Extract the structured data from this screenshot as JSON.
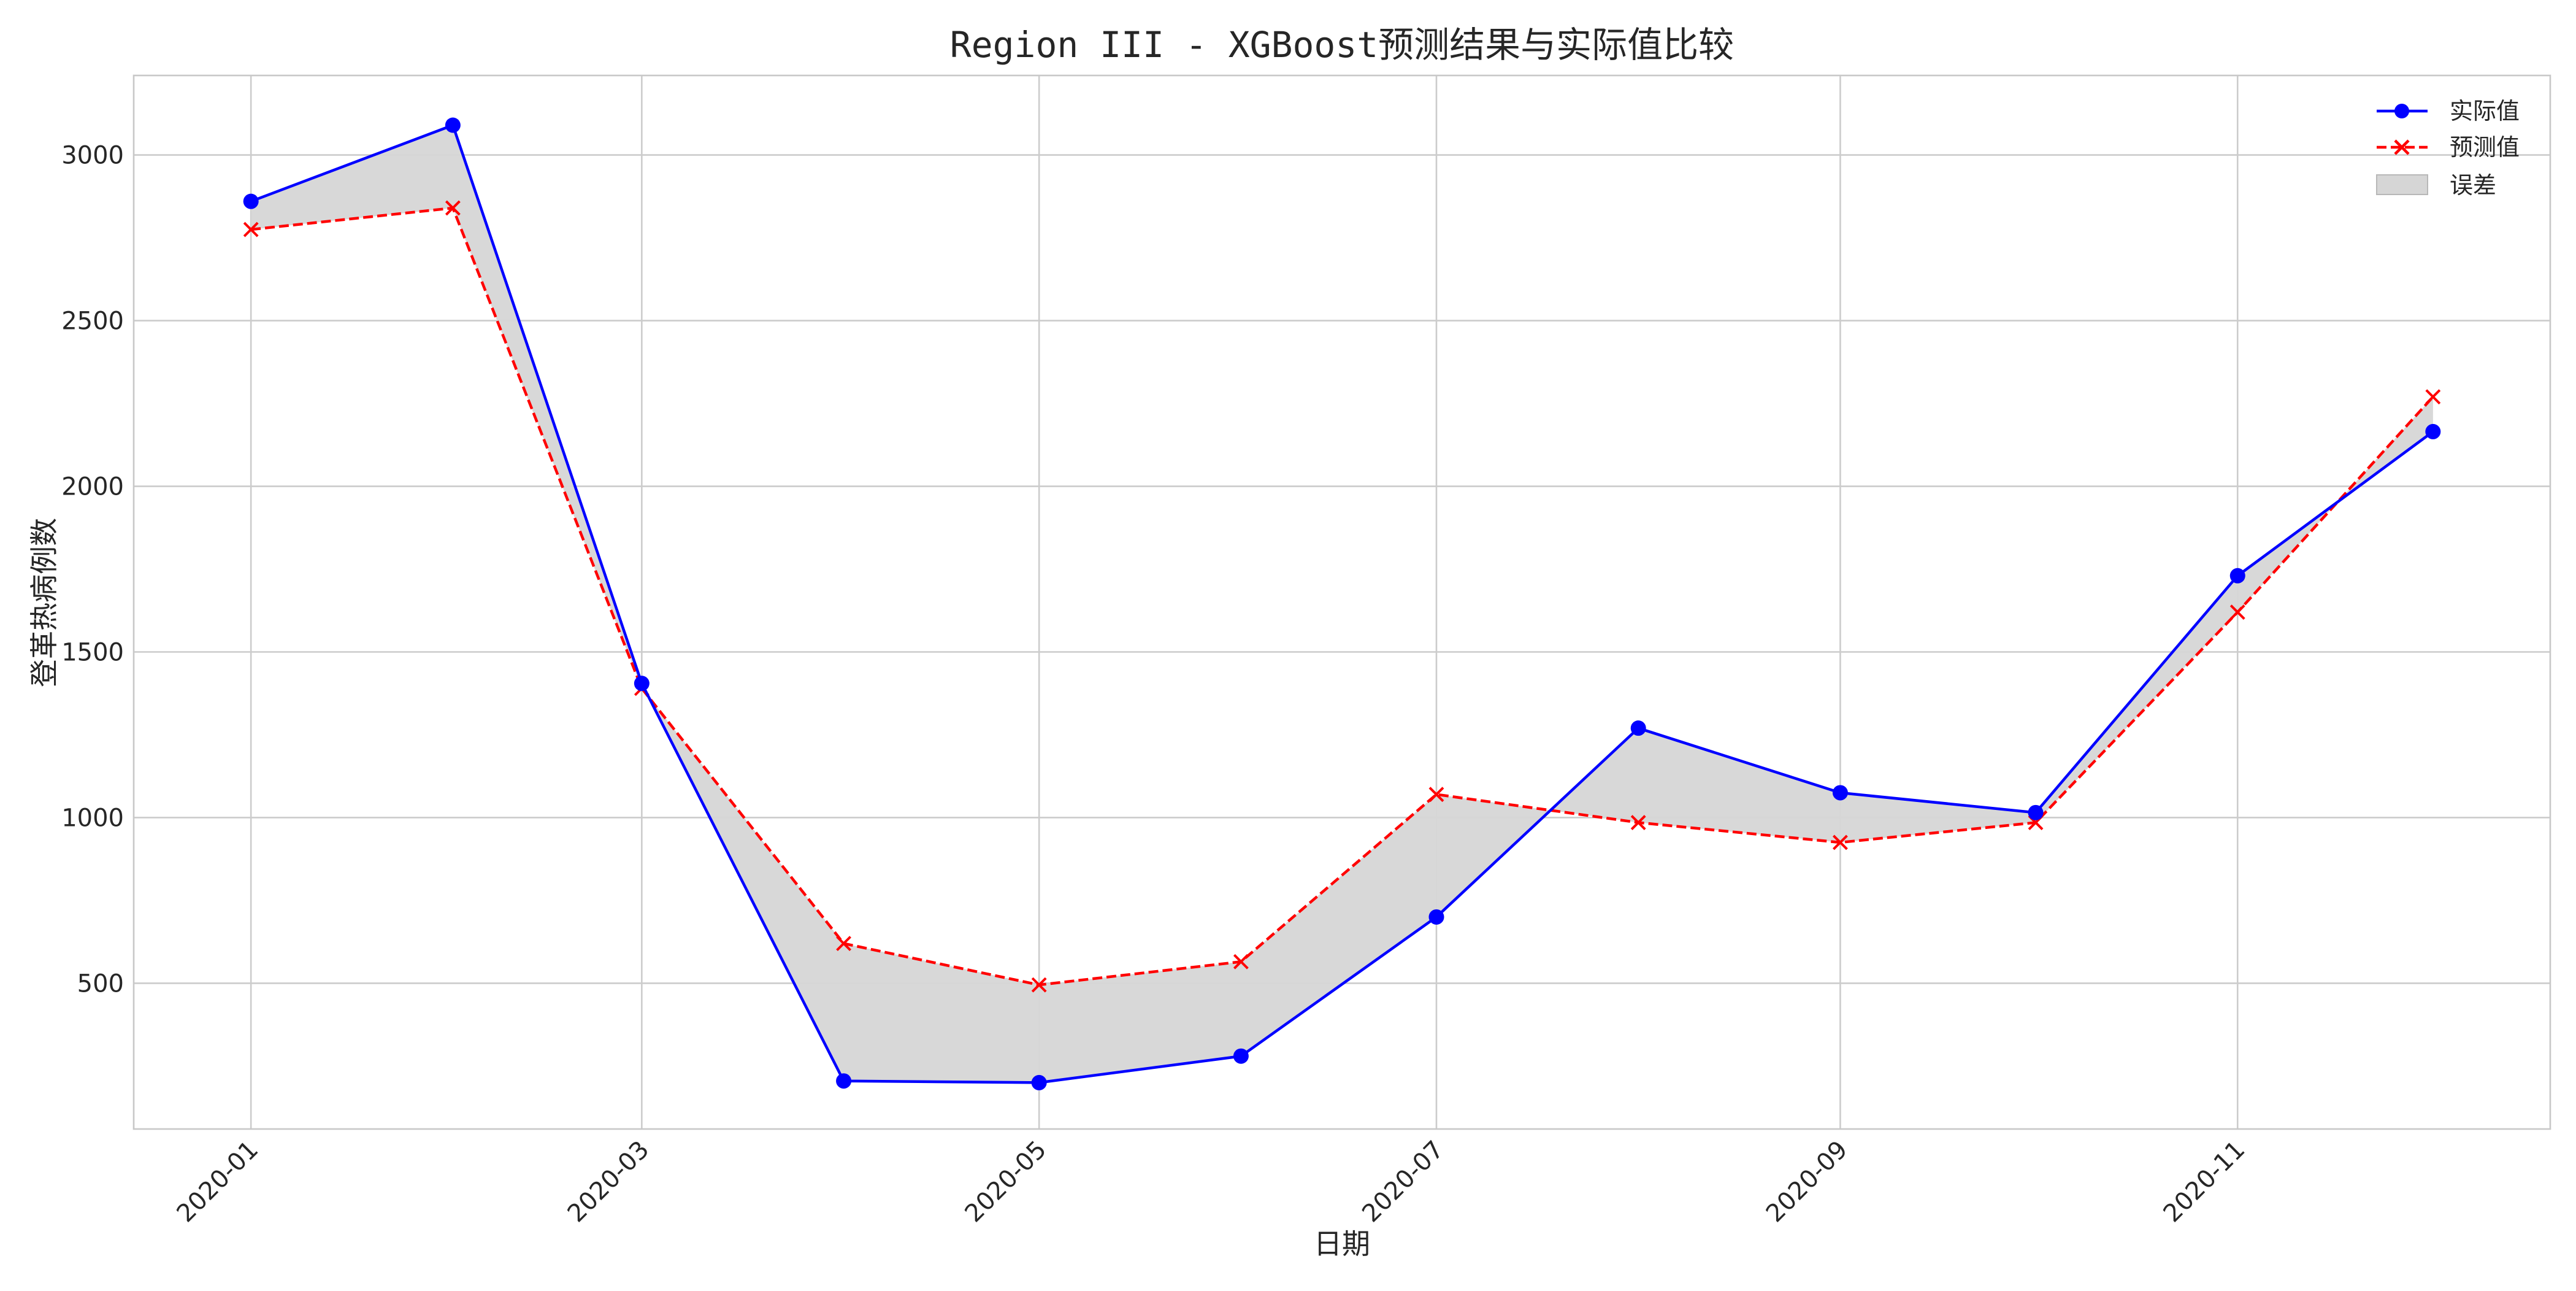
{
  "chart_data": {
    "type": "line",
    "title": "Region III - XGBoost预测结果与实际值比较",
    "xlabel": "日期",
    "ylabel": "登革热病例数",
    "x": [
      "2020-01-01",
      "2020-02-01",
      "2020-03-01",
      "2020-04-01",
      "2020-05-01",
      "2020-06-01",
      "2020-07-01",
      "2020-08-01",
      "2020-09-01",
      "2020-10-01",
      "2020-11-01",
      "2020-12-01"
    ],
    "x_ticks": [
      "2020-01",
      "2020-03",
      "2020-05",
      "2020-07",
      "2020-09",
      "2020-11"
    ],
    "x_range": [
      "2019-12-14",
      "2020-12-19"
    ],
    "y_ticks": [
      500,
      1000,
      1500,
      2000,
      2500,
      3000
    ],
    "ylim": [
      60,
      3240
    ],
    "grid": true,
    "legend_position": "top-right",
    "series": [
      {
        "name": "实际值",
        "values": [
          2860,
          3090,
          1405,
          205,
          200,
          280,
          700,
          1270,
          1075,
          1015,
          1730,
          2165
        ],
        "color": "#0000ff",
        "style": "solid",
        "marker": "circle"
      },
      {
        "name": "预测值",
        "values": [
          2775,
          2840,
          1390,
          620,
          495,
          565,
          1070,
          985,
          925,
          985,
          1620,
          2270
        ],
        "color": "#ff0000",
        "style": "dashed",
        "marker": "x"
      }
    ],
    "fill_between": {
      "name": "误差",
      "color": "#d6d6d6"
    }
  }
}
